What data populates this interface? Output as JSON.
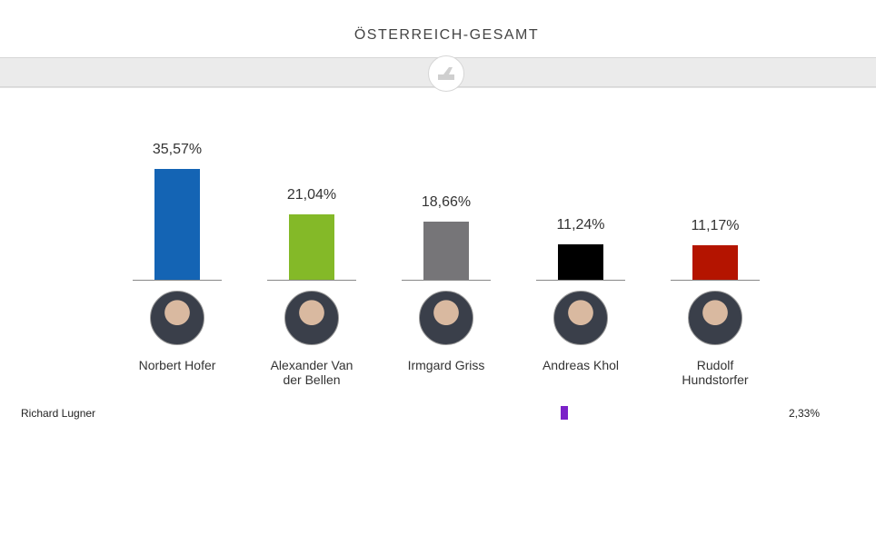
{
  "chart_data": [
    {
      "type": "bar",
      "title": "ÖSTERREICH-GESAMT",
      "categories": [
        "Norbert Hofer",
        "Alexander Van der Bellen",
        "Irmgard Griss",
        "Andreas Khol",
        "Rudolf Hundstorfer"
      ],
      "values": [
        35.57,
        21.04,
        18.66,
        11.24,
        11.17
      ],
      "value_labels": [
        "35,57%",
        "21,04%",
        "18,66%",
        "11,24%",
        "11,17%"
      ],
      "colors": [
        "#1464b4",
        "#84b928",
        "#767578",
        "#000000",
        "#b41400"
      ]
    },
    {
      "type": "hbar",
      "categories": [
        "Richard Lugner"
      ],
      "values": [
        2.33
      ],
      "value_labels": [
        "2,33%"
      ],
      "colors": [
        "#7b22c8"
      ]
    }
  ]
}
